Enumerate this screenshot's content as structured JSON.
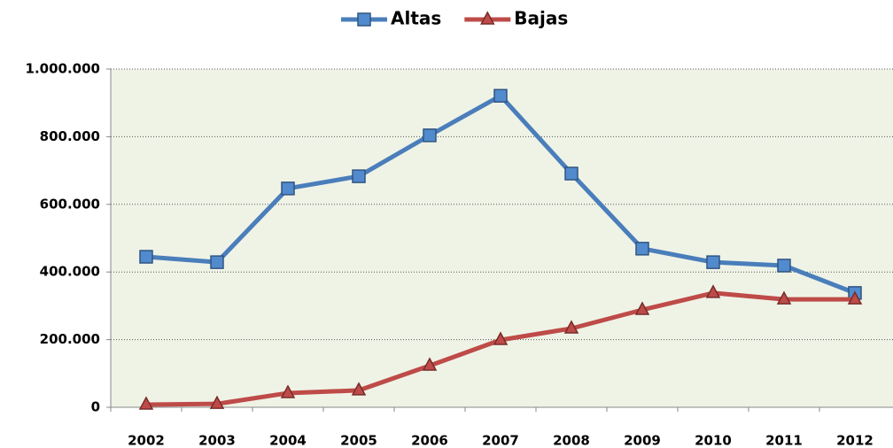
{
  "chart_data": {
    "type": "line",
    "categories": [
      "2002",
      "2003",
      "2004",
      "2005",
      "2006",
      "2007",
      "2008",
      "2009",
      "2010",
      "2011",
      "2012"
    ],
    "series": [
      {
        "name": "Altas",
        "color": "#4a7ebb",
        "marker": "square",
        "values": [
          445000,
          429000,
          647000,
          683000,
          804000,
          921000,
          691000,
          469000,
          429000,
          419000,
          338000
        ]
      },
      {
        "name": "Bajas",
        "color": "#be4b48",
        "marker": "triangle",
        "values": [
          8000,
          10000,
          42000,
          50000,
          123000,
          199000,
          233000,
          288000,
          338000,
          319000,
          319000
        ]
      }
    ],
    "ylim": [
      0,
      1000000
    ],
    "yticks": [
      0,
      {
        "value": 200000,
        "label": "200.000"
      },
      {
        "value": 400000,
        "label": "400.000"
      },
      {
        "value": 600000,
        "label": "600.000"
      },
      {
        "value": 800000,
        "label": "800.000"
      },
      {
        "value": 1000000,
        "label": "1.000.000"
      }
    ],
    "grid": true,
    "legend": "top"
  }
}
